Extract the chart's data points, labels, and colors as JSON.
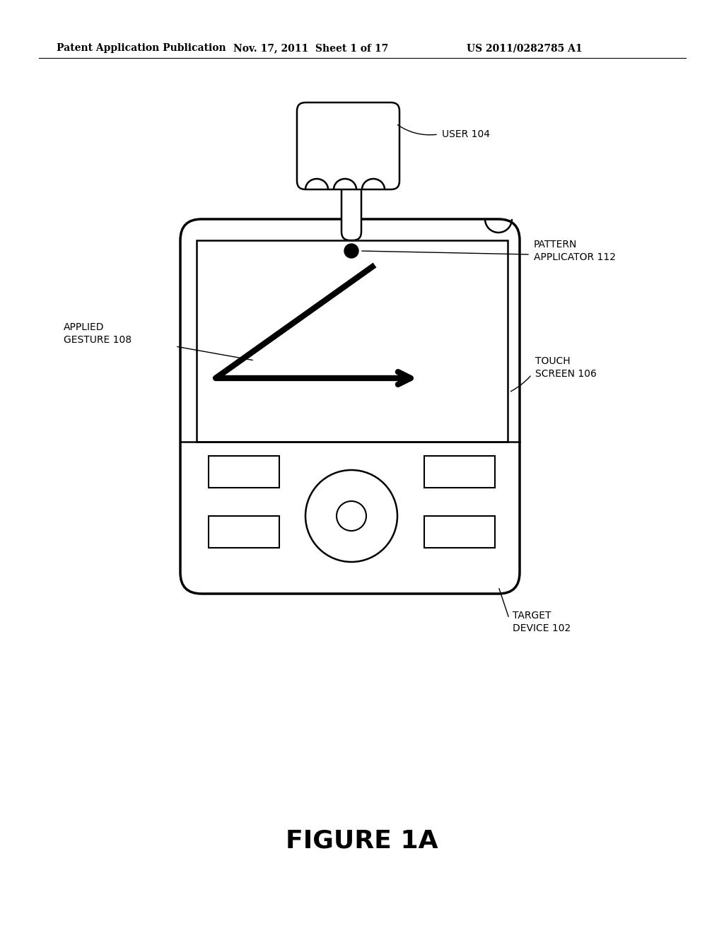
{
  "bg_color": "#ffffff",
  "header_left": "Patent Application Publication",
  "header_center": "Nov. 17, 2011  Sheet 1 of 17",
  "header_right": "US 2011/0282785 A1",
  "figure_label": "FIGURE 1A",
  "labels": {
    "user": "USER 104",
    "pattern_applicator": "PATTERN\nAPPLICATOR 112",
    "applied_gesture": "APPLIED\nGESTURE 108",
    "touch_screen": "TOUCH\nSCREEN 106",
    "target_device": "TARGET\nDEVICE 102"
  }
}
